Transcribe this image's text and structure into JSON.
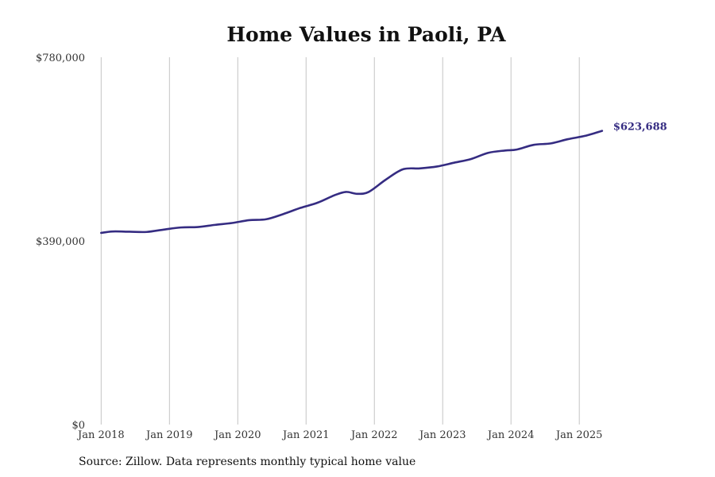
{
  "chart_data": {
    "type": "line",
    "title": "Home Values in Paoli, PA",
    "xlabel": "",
    "ylabel": "",
    "ylim": [
      0,
      780000
    ],
    "y_ticks": [
      0,
      390000,
      780000
    ],
    "y_tick_labels": [
      "$0",
      "$390,000",
      "$780,000"
    ],
    "x_ticks": [
      "Jan 2018",
      "Jan 2019",
      "Jan 2020",
      "Jan 2021",
      "Jan 2022",
      "Jan 2023",
      "Jan 2024",
      "Jan 2025"
    ],
    "x_range": [
      "2017-11",
      "2025-12"
    ],
    "grid": "vertical",
    "color": "#352c82",
    "end_label": "$623,688",
    "series": [
      {
        "values": [
          {
            "x": "2018-01",
            "y": 407000
          },
          {
            "x": "2018-03",
            "y": 410000
          },
          {
            "x": "2018-06",
            "y": 409500
          },
          {
            "x": "2018-09",
            "y": 409000
          },
          {
            "x": "2018-12",
            "y": 414000
          },
          {
            "x": "2019-03",
            "y": 418500
          },
          {
            "x": "2019-06",
            "y": 419500
          },
          {
            "x": "2019-09",
            "y": 424000
          },
          {
            "x": "2019-12",
            "y": 428000
          },
          {
            "x": "2020-03",
            "y": 434000
          },
          {
            "x": "2020-06",
            "y": 436000
          },
          {
            "x": "2020-09",
            "y": 447000
          },
          {
            "x": "2020-12",
            "y": 460000
          },
          {
            "x": "2021-03",
            "y": 471000
          },
          {
            "x": "2021-06",
            "y": 487000
          },
          {
            "x": "2021-08",
            "y": 494000
          },
          {
            "x": "2021-10",
            "y": 490000
          },
          {
            "x": "2021-12",
            "y": 494000
          },
          {
            "x": "2022-03",
            "y": 520000
          },
          {
            "x": "2022-06",
            "y": 542000
          },
          {
            "x": "2022-09",
            "y": 544000
          },
          {
            "x": "2022-12",
            "y": 548000
          },
          {
            "x": "2023-03",
            "y": 556000
          },
          {
            "x": "2023-06",
            "y": 564000
          },
          {
            "x": "2023-09",
            "y": 577000
          },
          {
            "x": "2023-12",
            "y": 582000
          },
          {
            "x": "2024-02",
            "y": 584000
          },
          {
            "x": "2024-05",
            "y": 594000
          },
          {
            "x": "2024-08",
            "y": 597000
          },
          {
            "x": "2024-11",
            "y": 606000
          },
          {
            "x": "2025-02",
            "y": 613000
          },
          {
            "x": "2025-05",
            "y": 623688
          }
        ]
      }
    ]
  },
  "footer": {
    "source": "Source: Zillow. Data represents monthly typical home value"
  }
}
